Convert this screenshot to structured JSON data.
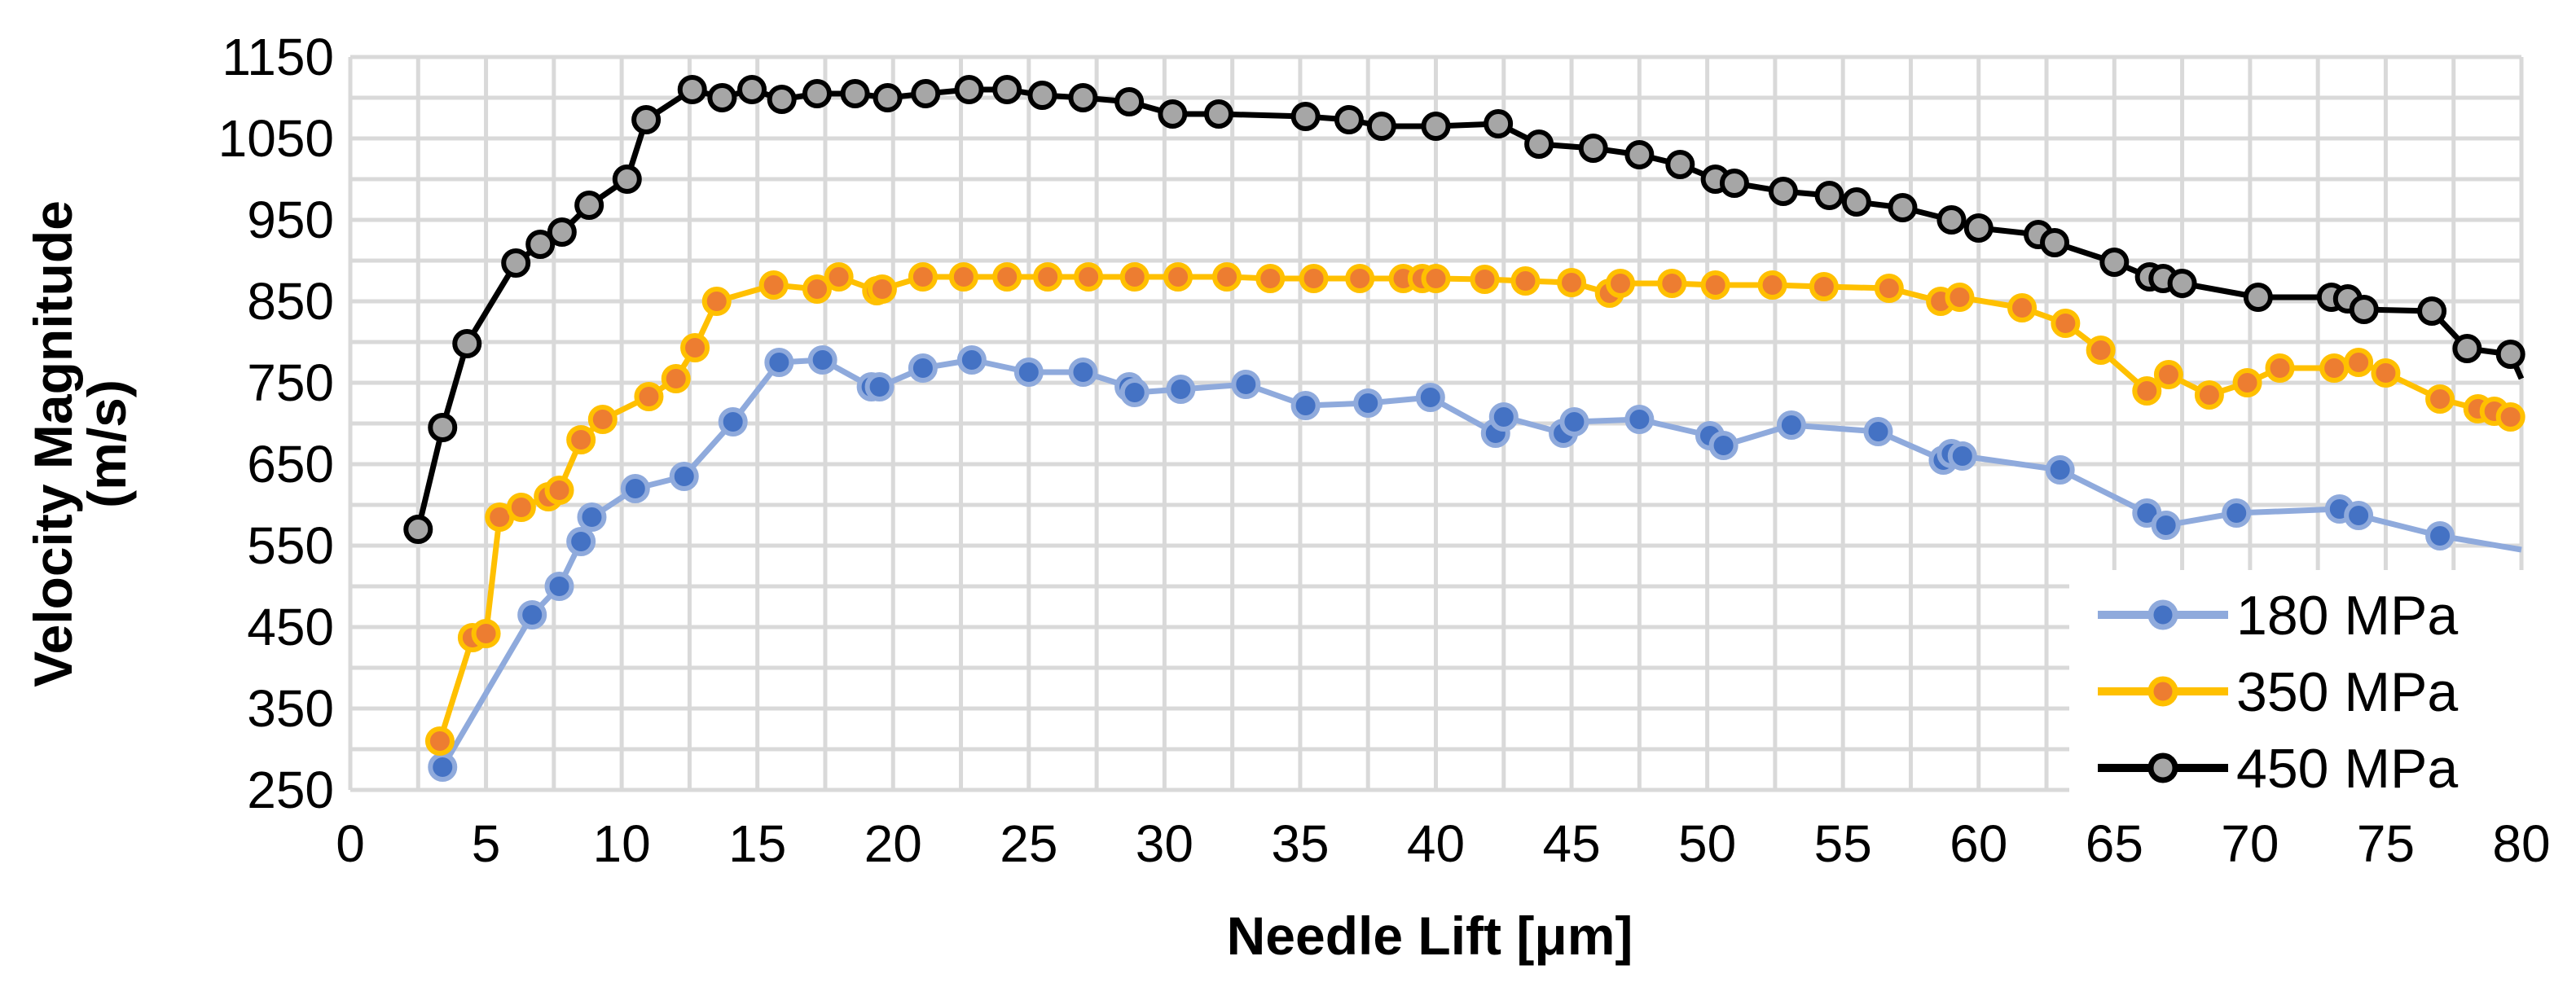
{
  "chart_data": {
    "type": "line",
    "title": "",
    "xlabel": "Needle Lift [μm]",
    "ylabel": "Velocity Magnitude (m/s)",
    "ylabel_lines": [
      "Velocity Magnitude",
      "(m/s)"
    ],
    "xlim": [
      0,
      80
    ],
    "ylim": [
      250,
      1150
    ],
    "xticks": [
      0,
      5,
      10,
      15,
      20,
      25,
      30,
      35,
      40,
      45,
      50,
      55,
      60,
      65,
      70,
      75,
      80
    ],
    "yticks": [
      250,
      350,
      450,
      550,
      650,
      750,
      850,
      950,
      1050,
      1150
    ],
    "grid": true,
    "legend_position": "bottom-right",
    "series": [
      {
        "name": "180 MPa",
        "line_color": "#8faadc",
        "marker_fill": "#4472c4",
        "marker_stroke": "#8faadc",
        "x": [
          3.4,
          6.7,
          7.7,
          8.5,
          8.9,
          10.5,
          12.3,
          14.1,
          15.8,
          17.4,
          19.2,
          19.5,
          21.1,
          22.9,
          25.0,
          27.0,
          28.7,
          28.9,
          30.6,
          33.0,
          35.2,
          37.5,
          39.8,
          42.2,
          42.5,
          44.7,
          45.1,
          47.5,
          50.1,
          50.6,
          53.1,
          56.3,
          58.7,
          59.0,
          59.4,
          63.0,
          66.2,
          66.9,
          69.5,
          73.3,
          74.0,
          77.0,
          80.0
        ],
        "y": [
          278,
          465,
          500,
          555,
          585,
          620,
          635,
          702,
          775,
          778,
          745,
          745,
          768,
          778,
          763,
          763,
          745,
          738,
          742,
          748,
          722,
          725,
          732,
          688,
          708,
          688,
          702,
          705,
          685,
          673,
          698,
          690,
          655,
          663,
          660,
          643,
          590,
          575,
          590,
          595,
          587,
          562,
          545
        ]
      },
      {
        "name": "350 MPa",
        "line_color": "#ffc000",
        "marker_fill": "#ed7d31",
        "marker_stroke": "#ffc000",
        "x": [
          3.3,
          4.5,
          5.0,
          5.5,
          6.3,
          7.3,
          7.7,
          8.5,
          9.3,
          11.0,
          12.0,
          12.7,
          13.5,
          15.6,
          17.2,
          18.0,
          19.4,
          19.6,
          21.1,
          22.6,
          24.2,
          25.7,
          27.2,
          28.9,
          30.5,
          32.3,
          33.9,
          35.5,
          37.2,
          38.8,
          39.5,
          40.0,
          41.8,
          43.3,
          45.0,
          46.4,
          46.8,
          48.7,
          50.3,
          52.4,
          54.3,
          56.7,
          58.6,
          59.3,
          61.6,
          63.2,
          64.5,
          66.2,
          67.0,
          68.5,
          69.9,
          71.1,
          73.1,
          74.0,
          75.0,
          77.0,
          78.4,
          79.0,
          79.6,
          80.0
        ],
        "y": [
          310,
          437,
          442,
          585,
          597,
          610,
          618,
          680,
          705,
          733,
          755,
          793,
          850,
          870,
          865,
          880,
          863,
          865,
          880,
          880,
          880,
          880,
          880,
          880,
          880,
          880,
          878,
          878,
          878,
          878,
          878,
          878,
          877,
          875,
          873,
          860,
          872,
          872,
          870,
          870,
          868,
          866,
          850,
          855,
          842,
          823,
          790,
          740,
          760,
          735,
          750,
          768,
          768,
          775,
          762,
          730,
          718,
          715,
          708,
          710
        ]
      },
      {
        "name": "450 MPa",
        "line_color": "#000000",
        "marker_fill": "#a6a6a6",
        "marker_stroke": "#000000",
        "x": [
          2.5,
          3.4,
          4.3,
          6.1,
          7.0,
          7.8,
          8.8,
          10.2,
          10.9,
          12.6,
          13.7,
          14.8,
          15.9,
          17.2,
          18.6,
          19.8,
          21.2,
          22.8,
          24.2,
          25.5,
          27.0,
          28.7,
          30.3,
          32.0,
          35.2,
          36.8,
          38.0,
          40.0,
          42.3,
          43.8,
          45.8,
          47.5,
          49.0,
          50.3,
          51.0,
          52.8,
          54.5,
          55.5,
          57.2,
          59.0,
          60.0,
          62.2,
          62.8,
          65.0,
          66.3,
          66.8,
          67.5,
          70.3,
          73.0,
          73.6,
          74.2,
          76.7,
          78.0,
          79.6,
          80.0
        ],
        "y": [
          570,
          695,
          798,
          897,
          920,
          935,
          968,
          1000,
          1073,
          1110,
          1100,
          1110,
          1098,
          1105,
          1105,
          1100,
          1105,
          1110,
          1110,
          1103,
          1100,
          1095,
          1080,
          1080,
          1077,
          1073,
          1065,
          1065,
          1068,
          1043,
          1038,
          1030,
          1018,
          1000,
          995,
          985,
          980,
          972,
          965,
          950,
          940,
          932,
          922,
          898,
          880,
          878,
          872,
          855,
          855,
          853,
          840,
          838,
          792,
          785,
          755
        ]
      }
    ]
  }
}
